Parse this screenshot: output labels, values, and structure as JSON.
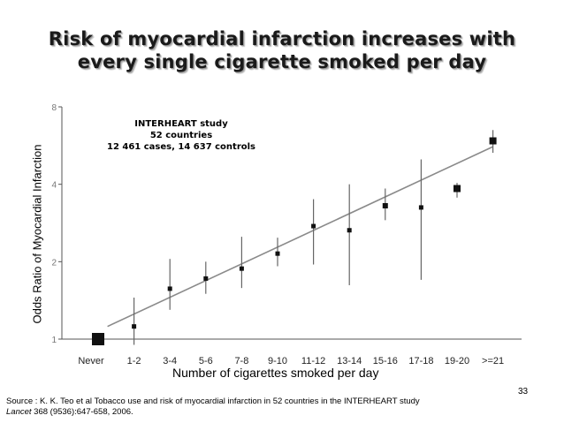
{
  "title": {
    "line1": "Risk of myocardial infarction increases with",
    "line2": "every single cigarette smoked per day"
  },
  "annotation": {
    "line1": "INTERHEART study",
    "line2": "52 countries",
    "line3": "12 461 cases, 14 637 controls"
  },
  "page_number": "33",
  "source": {
    "line1": "Source : K. K. Teo et al Tobacco use and risk of myocardial infarction in 52 countries in the INTERHEART study",
    "journal": "Lancet",
    "line2_rest": " 368 (9536):647-658, 2006."
  },
  "chart_data": {
    "type": "scatter",
    "xlabel": "Number of cigarettes smoked per day",
    "ylabel": "Odds Ratio of Myocardial Infarction",
    "y_scale": "log",
    "ylim": [
      1,
      8
    ],
    "y_ticks": [
      1,
      2,
      4,
      8
    ],
    "y_tick_labels": [
      "1",
      "2",
      "4",
      "8"
    ],
    "categories": [
      "Never",
      "1-2",
      "3-4",
      "5-6",
      "7-8",
      "9-10",
      "11-12",
      "13-14",
      "15-16",
      "17-18",
      "19-20",
      ">=21"
    ],
    "series": [
      {
        "odds_ratio": [
          1.0,
          1.12,
          1.57,
          1.72,
          1.88,
          2.15,
          2.75,
          2.65,
          3.3,
          3.25,
          3.85,
          5.9
        ],
        "ci_lower": [
          1.0,
          0.95,
          1.3,
          1.5,
          1.58,
          1.92,
          1.95,
          1.62,
          2.9,
          1.7,
          3.55,
          5.3
        ],
        "ci_upper": [
          1.0,
          1.45,
          2.05,
          2.0,
          2.5,
          2.48,
          3.5,
          4.0,
          3.85,
          5.0,
          4.05,
          6.5
        ]
      }
    ],
    "trend_line": {
      "start": 1.12,
      "end": 5.6
    },
    "grid": false,
    "legend": "none"
  }
}
